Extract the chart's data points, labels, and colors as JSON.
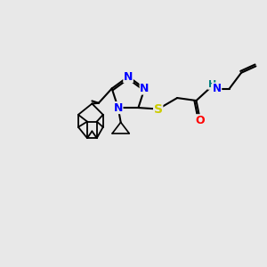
{
  "bg_color": "#e8e8e8",
  "atom_colors": {
    "N": "#0000ff",
    "S": "#cccc00",
    "O": "#ff0000",
    "H": "#008080",
    "C": "#000000"
  },
  "bond_color": "#000000",
  "bond_width": 1.5,
  "font_size": 9,
  "figsize": [
    3.0,
    3.0
  ],
  "dpi": 100,
  "xlim": [
    0,
    10
  ],
  "ylim": [
    0,
    10
  ]
}
